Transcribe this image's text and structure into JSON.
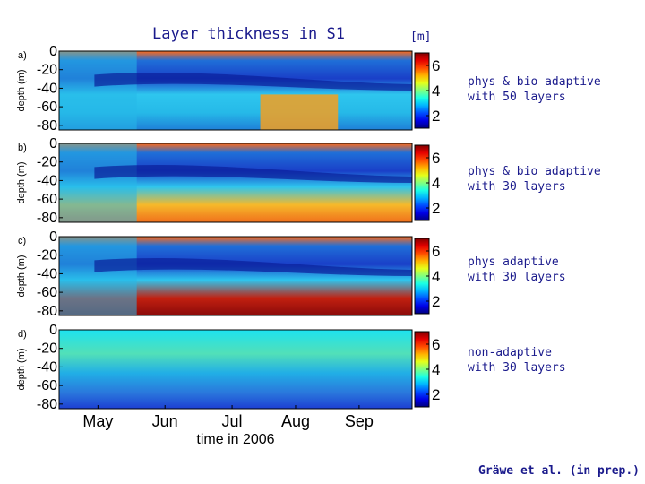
{
  "header": {
    "title": "Layer thickness in S1",
    "unit": "[m]"
  },
  "credit": "Gräwe et al. (in prep.)",
  "colors": {
    "text": "#1a1a8c"
  },
  "chart_data": {
    "type": "heatmap",
    "title": "Layer thickness in S1",
    "xlabel": "time in 2006",
    "ylabel": "depth (m)",
    "x_ticks": [
      "May",
      "Jun",
      "Jul",
      "Aug",
      "Sep"
    ],
    "y_ticks": [
      "0",
      "-20",
      "-40",
      "-60",
      "-80"
    ],
    "ylim": [
      -85,
      0
    ],
    "colorbar_ticks": [
      "6",
      "4",
      "2"
    ],
    "colorbar_range": [
      1,
      7
    ],
    "colorbar_unit": "[m]",
    "panels": [
      {
        "label": "a)",
        "description": [
          "phys & bio adaptive",
          "with 50 layers"
        ]
      },
      {
        "label": "b)",
        "description": [
          "phys & bio adaptive",
          "with 30 layers"
        ]
      },
      {
        "label": "c)",
        "description": [
          "phys adaptive",
          "with 30 layers"
        ]
      },
      {
        "label": "d)",
        "description": [
          "non-adaptive",
          "with 30 layers"
        ]
      }
    ]
  }
}
